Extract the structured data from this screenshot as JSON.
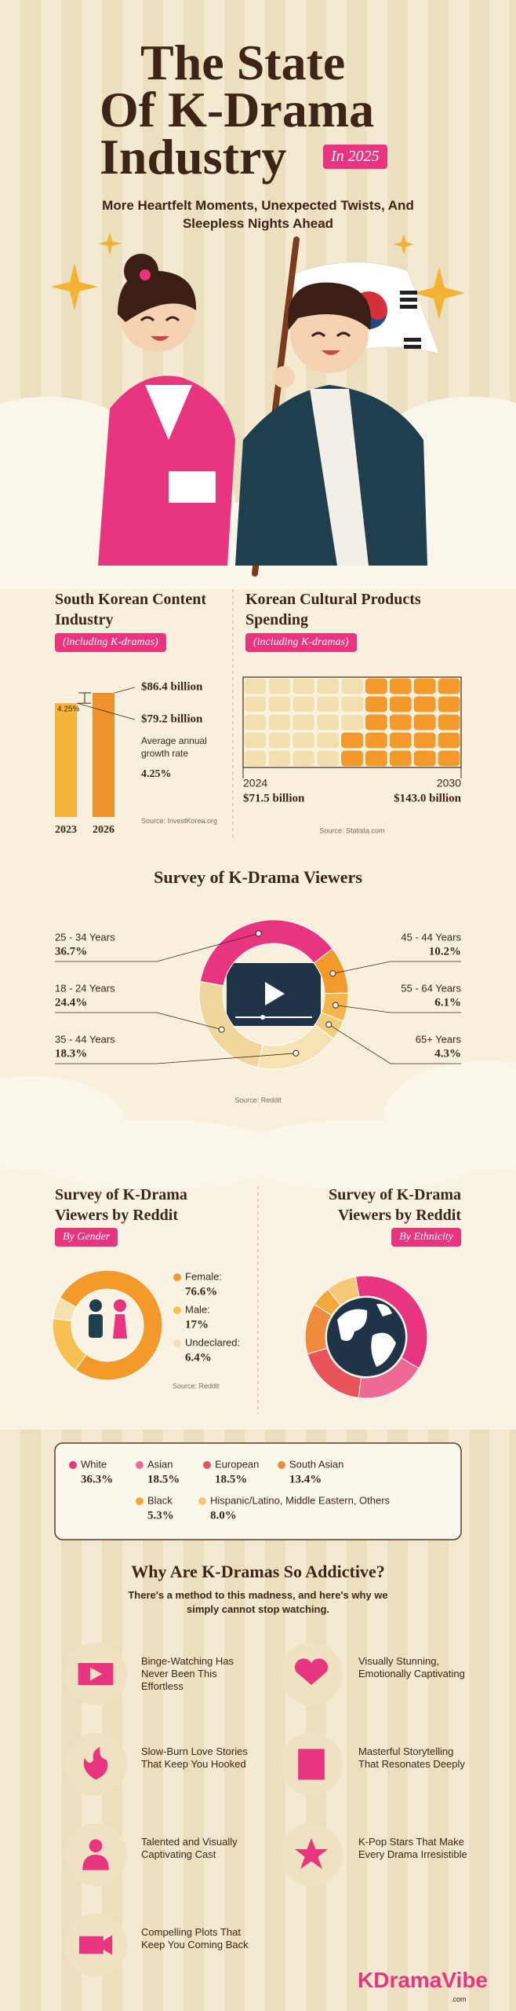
{
  "header": {
    "title": "The State Of K-Drama Industry",
    "badge": "In 2025",
    "subtitle": "More Heartfelt Moments, Unexpected Twists, And Sleepless Nights Ahead"
  },
  "chart_data": [
    {
      "type": "bar",
      "title": "South Korean Content Industry",
      "subtitle": "(including K-dramas)",
      "categories": [
        "2023",
        "2026"
      ],
      "values": [
        79.2,
        86.4
      ],
      "value_labels": [
        "$79.2 billion",
        "$86.4 billion"
      ],
      "colors": [
        "#f6b43c",
        "#f0922a"
      ],
      "growth_label": "Average annual growth rate",
      "growth_rate": "4.25%",
      "source": "Source: InvestKorea.org"
    },
    {
      "type": "waffle",
      "title": "Korean Cultural Products Spending",
      "subtitle": "(including K-dramas)",
      "categories": [
        "2024",
        "2030"
      ],
      "values": [
        71.5,
        143.0
      ],
      "value_labels": [
        "$71.5 billion",
        "$143.0 billion"
      ],
      "colors": [
        "#f1dfb0",
        "#f39a2b"
      ],
      "source": "Source: Statista.com"
    },
    {
      "type": "donut",
      "title": "Survey of K-Drama Viewers",
      "categories": [
        "25 - 34 Years",
        "45 - 44 Years",
        "55 - 64 Years",
        "65+ Years",
        "35 - 44 Years",
        "18 - 24 Years"
      ],
      "values": [
        36.7,
        10.2,
        6.1,
        4.3,
        18.3,
        24.4
      ],
      "value_labels": [
        "36.7%",
        "10.2%",
        "6.1%",
        "4.3%",
        "18.3%",
        "24.4%"
      ],
      "colors": [
        "#e9347f",
        "#f39a2b",
        "#f6b54a",
        "#f1cf7a",
        "#f5e4b2",
        "#efd79c"
      ],
      "source": "Source: Reddit"
    },
    {
      "type": "donut",
      "title": "Survey of K-Drama Viewers by Reddit",
      "subtitle": "By Gender",
      "categories": [
        "Female:",
        "Male:",
        "Undeclared:"
      ],
      "values": [
        76.6,
        17,
        6.4
      ],
      "value_labels": [
        "76.6%",
        "17%",
        "6.4%"
      ],
      "colors": [
        "#f39a2b",
        "#f6c052",
        "#f3e2ae"
      ],
      "source": "Source: Reddit"
    },
    {
      "type": "donut",
      "title": "Survey of K-Drama Viewers by Reddit",
      "subtitle": "By Ethnicity",
      "categories": [
        "White",
        "Asian",
        "European",
        "South Asian",
        "Black",
        "Hispanic/Latino, Middle Eastern, Others"
      ],
      "values": [
        36.3,
        18.5,
        18.5,
        13.4,
        5.3,
        8.0
      ],
      "value_labels": [
        "36.3%",
        "18.5%",
        "18.5%",
        "13.4%",
        "5.3%",
        "8.0%"
      ],
      "colors": [
        "#e9347f",
        "#ee6a94",
        "#e9545a",
        "#f08a3c",
        "#f2a93a",
        "#f5c777"
      ]
    }
  ],
  "addictive": {
    "title": "Why Are K-Dramas So Addictive?",
    "subtitle": "There's a method to this madness, and here's why we simply cannot stop watching.",
    "items": [
      "Binge-Watching Has Never Been This Effortless",
      "Visually Stunning, Emotionally Captivating",
      "Slow-Burn Love Stories That Keep You Hooked",
      "Masterful Storytelling That Resonates Deeply",
      "Talented and Visually Captivating Cast",
      "K-Pop Stars That Make Every Drama Irresistible",
      "Compelling Plots That Keep You Coming Back"
    ]
  },
  "footer": {
    "logo": "KDramaVibe",
    "domain": ".com"
  }
}
